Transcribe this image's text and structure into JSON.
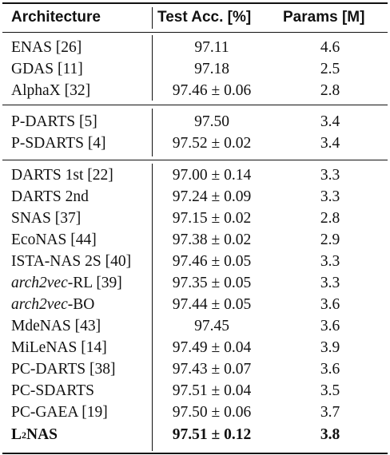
{
  "table": {
    "headers": {
      "architecture": "Architecture",
      "test_acc": "Test Acc. [%]",
      "params": "Params [M]"
    },
    "groups": [
      {
        "rows": [
          {
            "arch": "ENAS [26]",
            "acc": "97.11",
            "params": "4.6"
          },
          {
            "arch": "GDAS [11]",
            "acc": "97.18",
            "params": "2.5"
          },
          {
            "arch": "AlphaX [32]",
            "acc": "97.46 ± 0.06",
            "params": "2.8"
          }
        ]
      },
      {
        "rows": [
          {
            "arch": "P-DARTS [5]",
            "acc": "97.50",
            "params": "3.4"
          },
          {
            "arch": "P-SDARTS [4]",
            "acc": "97.52 ± 0.02",
            "params": "3.4"
          }
        ]
      },
      {
        "rows": [
          {
            "arch": "DARTS 1st [22]",
            "acc": "97.00 ± 0.14",
            "params": "3.3"
          },
          {
            "arch": "DARTS 2nd",
            "acc": "97.24 ± 0.09",
            "params": "3.3"
          },
          {
            "arch": "SNAS [37]",
            "acc": "97.15 ± 0.02",
            "params": "2.8"
          },
          {
            "arch": "EcoNAS [44]",
            "acc": "97.38 ± 0.02",
            "params": "2.9"
          },
          {
            "arch": "ISTA-NAS 2S [40]",
            "acc": "97.46 ± 0.05",
            "params": "3.3"
          },
          {
            "arch_italic": "arch2vec",
            "arch_rest": "-RL [39]",
            "acc": "97.35 ± 0.05",
            "params": "3.3"
          },
          {
            "arch_italic": "arch2vec",
            "arch_rest": "-BO",
            "acc": "97.44 ± 0.05",
            "params": "3.6"
          },
          {
            "arch": "MdeNAS [43]",
            "acc": "97.45",
            "params": "3.6"
          },
          {
            "arch": "MiLeNAS [14]",
            "acc": "97.49 ± 0.04",
            "params": "3.9"
          },
          {
            "arch": "PC-DARTS [38]",
            "acc": "97.43 ± 0.07",
            "params": "3.6"
          },
          {
            "arch": "PC-SDARTS",
            "acc": "97.51 ± 0.04",
            "params": "3.5"
          },
          {
            "arch": "PC-GAEA [19]",
            "acc": "97.50 ± 0.06",
            "params": "3.7"
          },
          {
            "arch_base": "L",
            "arch_sup": "2",
            "arch_rest": "NAS",
            "acc": "97.51 ± 0.12",
            "params": "3.8",
            "bold": true
          }
        ]
      }
    ]
  }
}
